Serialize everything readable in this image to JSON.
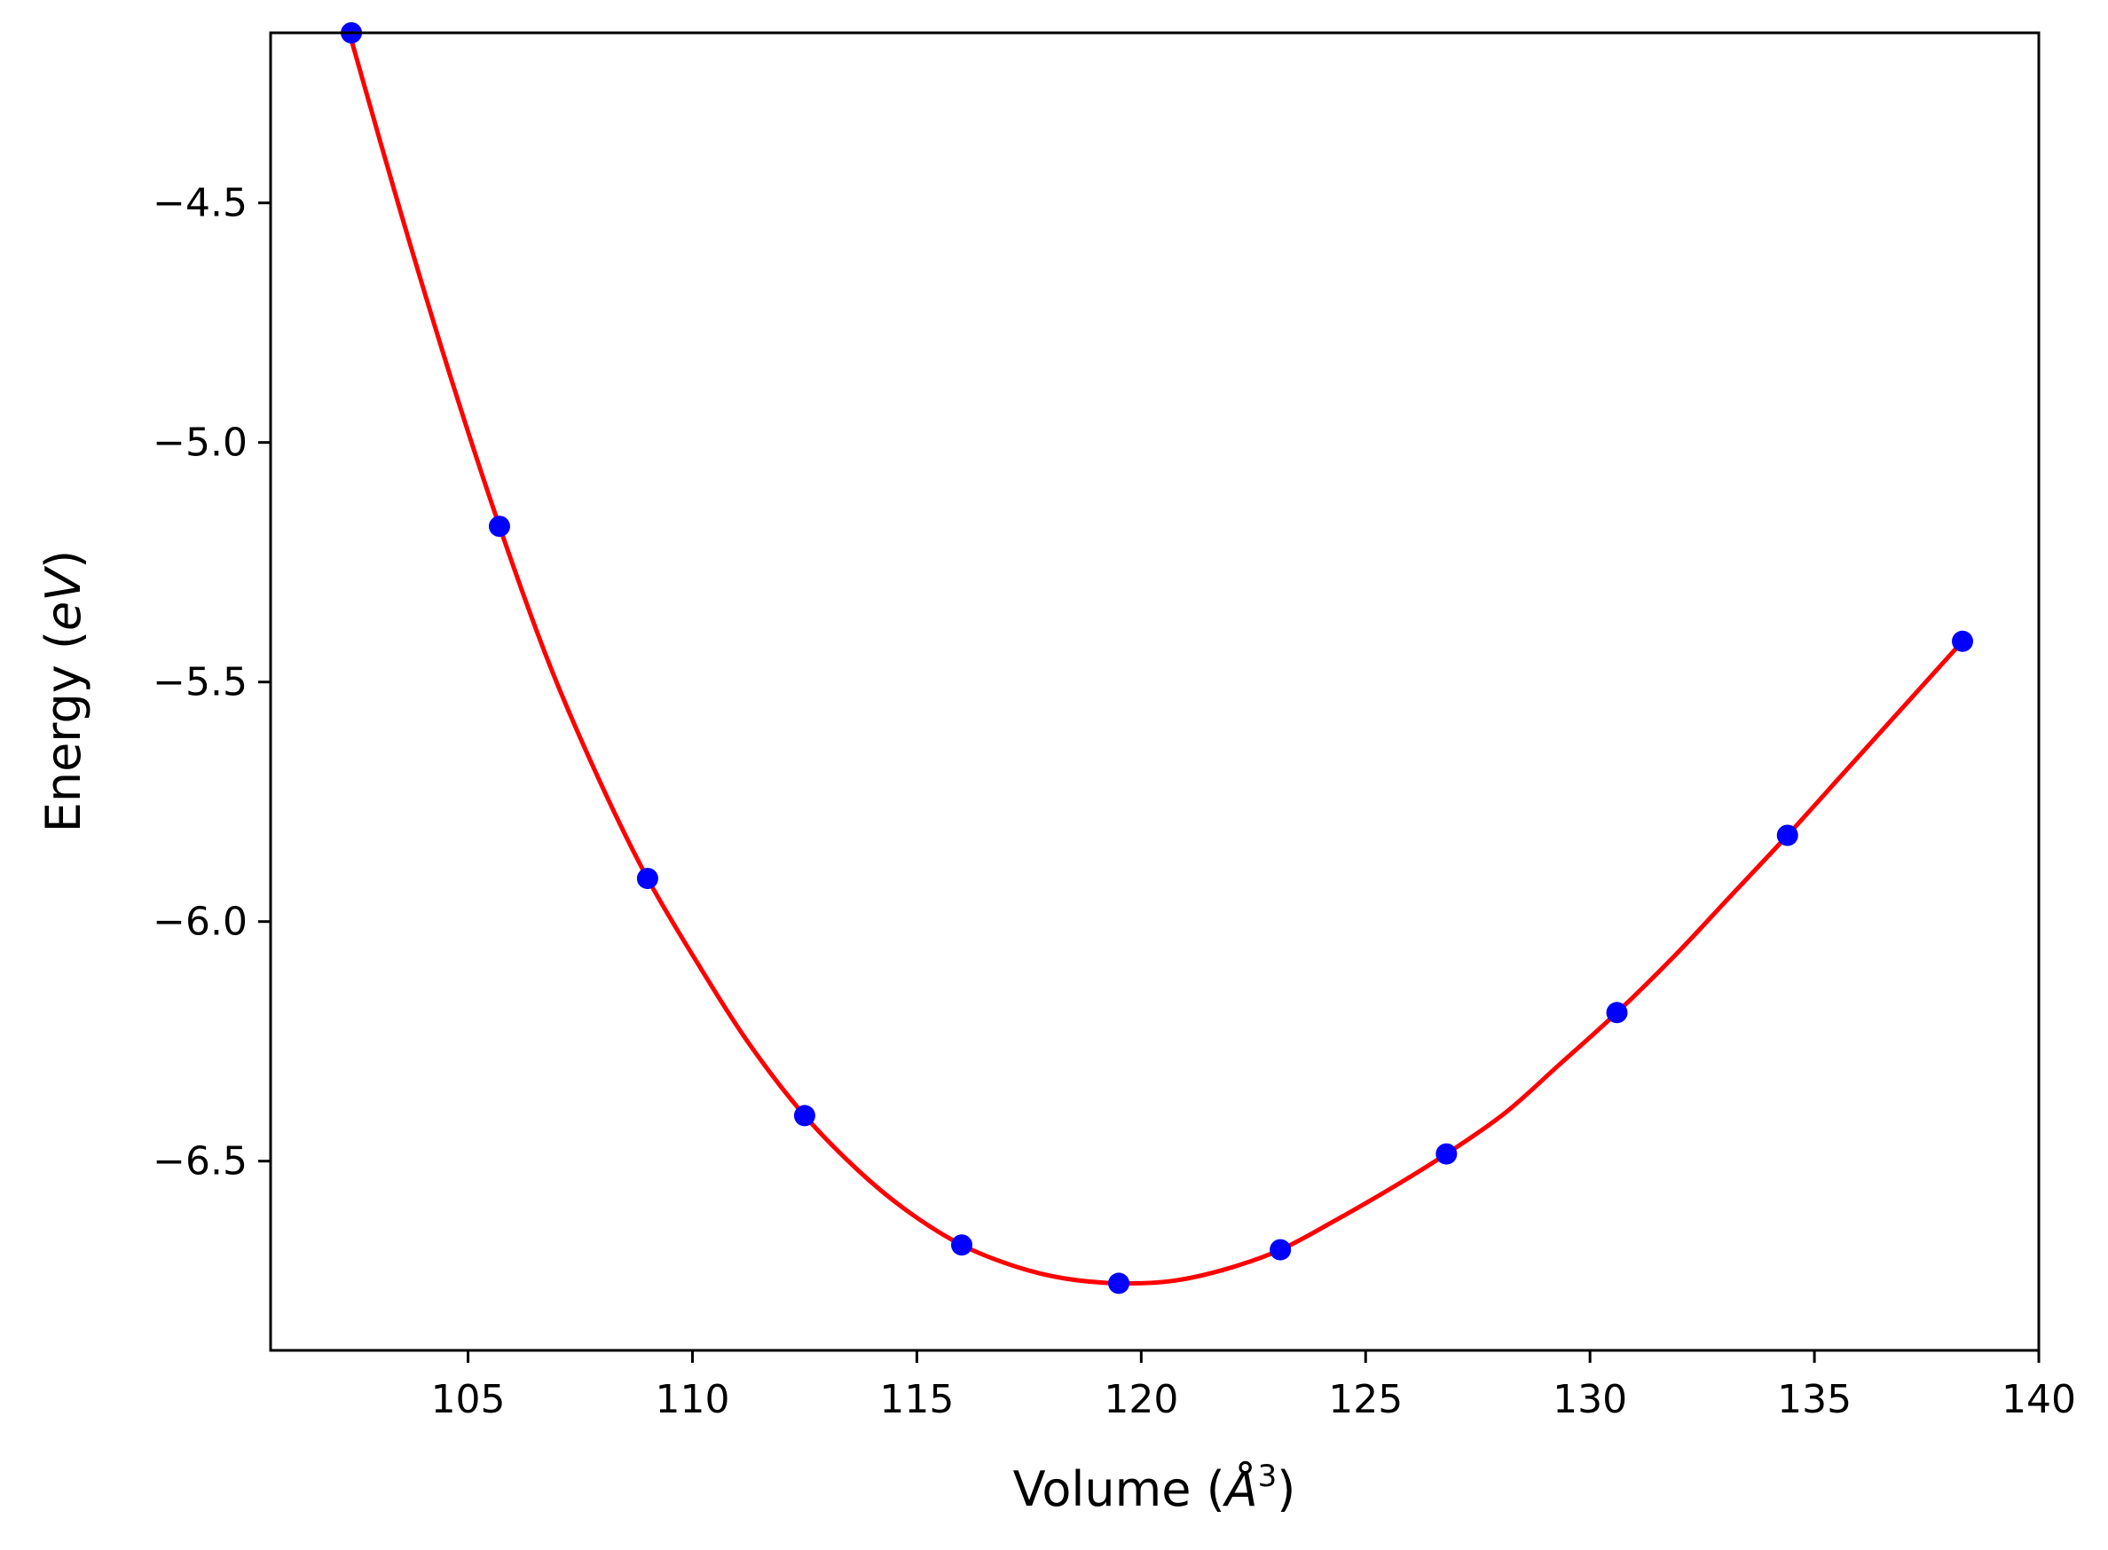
{
  "chart_data": {
    "type": "scatter",
    "title": "",
    "xlabel": {
      "prefix": "Volume (",
      "symbol": "Å",
      "sup": "3",
      "suffix": ")"
    },
    "ylabel": {
      "prefix": "Energy (",
      "symbol": "eV",
      "suffix": ")"
    },
    "xlim": [
      100.6,
      140.0
    ],
    "ylim": [
      -6.895,
      -4.145
    ],
    "xticks": [
      105,
      110,
      115,
      120,
      125,
      130,
      135,
      140
    ],
    "yticks": [
      -4.5,
      -5.0,
      -5.5,
      -6.0,
      -6.5
    ],
    "xtick_labels": [
      "105",
      "110",
      "115",
      "120",
      "125",
      "130",
      "135",
      "140"
    ],
    "ytick_labels": [
      "−4.5",
      "−5.0",
      "−5.5",
      "−6.0",
      "−6.5"
    ],
    "grid": false,
    "legend": "none",
    "series": [
      {
        "kind": "points",
        "color": "#0000ff",
        "x": [
          102.4,
          105.7,
          109.0,
          112.5,
          116.0,
          119.5,
          123.1,
          126.8,
          130.6,
          134.4,
          138.3
        ],
        "y": [
          -4.145,
          -5.175,
          -5.91,
          -6.405,
          -6.675,
          -6.755,
          -6.685,
          -6.485,
          -6.19,
          -5.82,
          -5.415
        ]
      },
      {
        "kind": "fit-curve",
        "color": "#ff0000",
        "x": [
          102.4,
          103.5,
          104.6,
          105.7,
          106.8,
          107.9,
          109.0,
          110.2,
          111.3,
          112.5,
          113.7,
          114.8,
          116.0,
          117.2,
          118.3,
          119.5,
          120.7,
          121.9,
          123.1,
          124.3,
          125.6,
          126.8,
          128.1,
          129.3,
          130.6,
          131.9,
          133.1,
          134.4,
          135.7,
          137.0,
          138.3
        ],
        "y": [
          -4.16,
          -4.52,
          -4.86,
          -5.175,
          -5.46,
          -5.7,
          -5.91,
          -6.1,
          -6.26,
          -6.405,
          -6.52,
          -6.605,
          -6.675,
          -6.72,
          -6.745,
          -6.755,
          -6.75,
          -6.725,
          -6.685,
          -6.625,
          -6.555,
          -6.485,
          -6.4,
          -6.3,
          -6.19,
          -6.07,
          -5.95,
          -5.82,
          -5.685,
          -5.55,
          -5.415
        ]
      }
    ]
  }
}
